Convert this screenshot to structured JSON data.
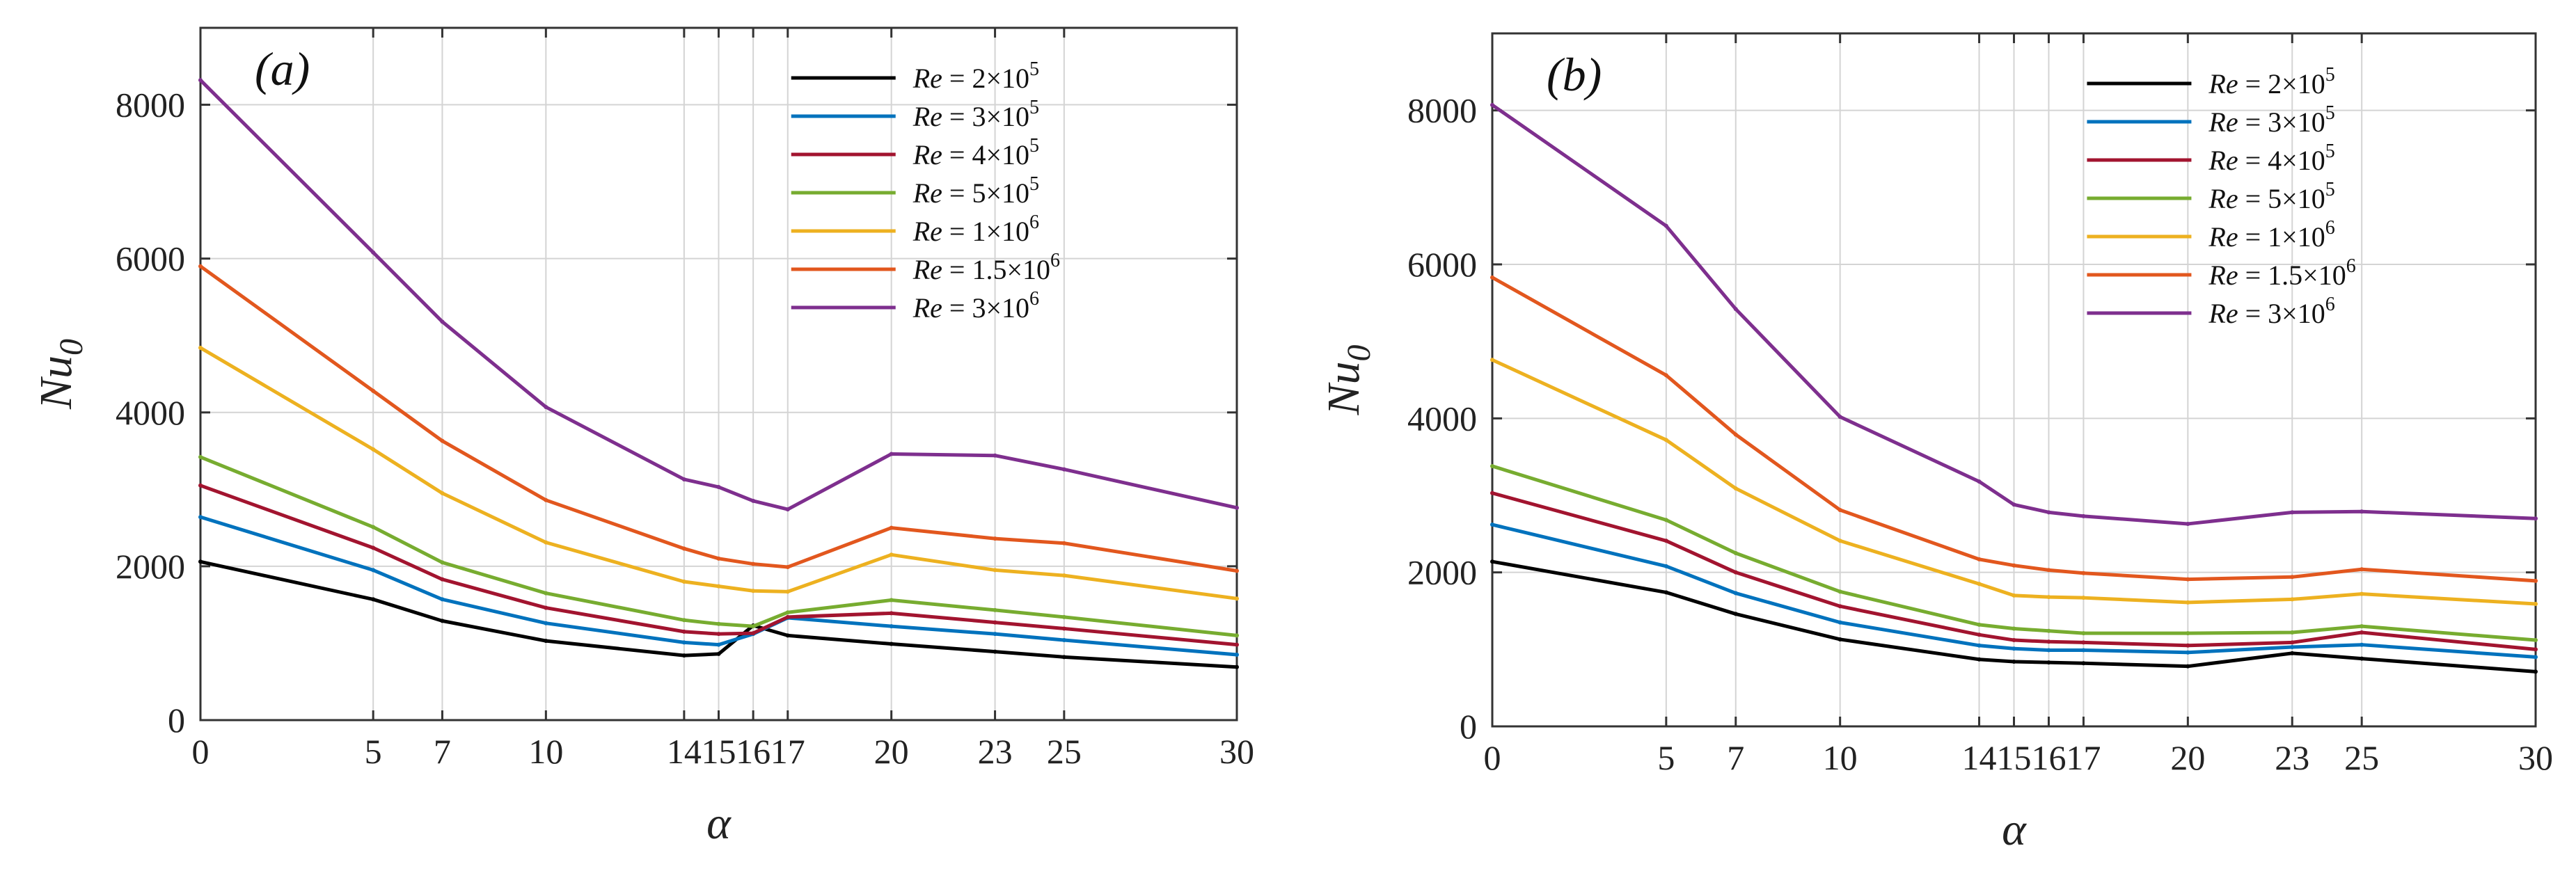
{
  "chart_data": [
    {
      "type": "line",
      "panel_label": "(a)",
      "xlabel": "α",
      "ylabel": "Nu",
      "ylabel_sub": "0",
      "xlim": [
        0,
        30
      ],
      "ylim": [
        0,
        9000
      ],
      "xticks": [
        0,
        5,
        7,
        10,
        14,
        15,
        16,
        17,
        20,
        23,
        25,
        30
      ],
      "yticks": [
        0,
        2000,
        4000,
        6000,
        8000
      ],
      "grid": true,
      "legend_position": "top-right",
      "x": [
        0,
        5,
        7,
        10,
        14,
        15,
        16,
        17,
        20,
        23,
        25,
        30
      ],
      "series": [
        {
          "name": "Re = 2×10^5",
          "legend_prefix": "Re",
          "legend_value": " = 2×10",
          "legend_exp": "5",
          "color": "#000000",
          "values": [
            2060,
            1570,
            1290,
            1030,
            840,
            860,
            1230,
            1100,
            990,
            890,
            820,
            690
          ]
        },
        {
          "name": "Re = 3×10^5",
          "legend_prefix": "Re",
          "legend_value": " = 3×10",
          "legend_exp": "5",
          "color": "#0072BD",
          "values": [
            2640,
            1950,
            1570,
            1260,
            1010,
            980,
            1120,
            1330,
            1220,
            1120,
            1040,
            850
          ]
        },
        {
          "name": "Re = 4×10^5",
          "legend_prefix": "Re",
          "legend_value": " = 4×10",
          "legend_exp": "5",
          "color": "#A2142F",
          "values": [
            3050,
            2240,
            1830,
            1460,
            1150,
            1120,
            1130,
            1340,
            1390,
            1270,
            1190,
            980
          ]
        },
        {
          "name": "Re = 5×10^5",
          "legend_prefix": "Re",
          "legend_value": " = 5×10",
          "legend_exp": "5",
          "color": "#77AC30",
          "values": [
            3420,
            2510,
            2050,
            1650,
            1300,
            1250,
            1220,
            1400,
            1560,
            1430,
            1340,
            1100
          ]
        },
        {
          "name": "Re = 1×10^6",
          "legend_prefix": "Re",
          "legend_value": " = 1×10",
          "legend_exp": "6",
          "color": "#EDB120",
          "values": [
            4840,
            3520,
            2950,
            2310,
            1800,
            1740,
            1680,
            1670,
            2150,
            1950,
            1880,
            1580
          ]
        },
        {
          "name": "Re = 1.5×10^6",
          "legend_prefix": "Re",
          "legend_value": " = 1.5×10",
          "legend_exp": "6",
          "color": "#E2571E",
          "values": [
            5900,
            4280,
            3630,
            2860,
            2230,
            2100,
            2030,
            1990,
            2500,
            2360,
            2300,
            1940
          ]
        },
        {
          "name": "Re = 3×10^6",
          "legend_prefix": "Re",
          "legend_value": " = 3×10",
          "legend_exp": "6",
          "color": "#7E2F8E",
          "values": [
            8320,
            6080,
            5180,
            4070,
            3130,
            3030,
            2850,
            2740,
            3460,
            3440,
            3260,
            2760
          ]
        }
      ]
    },
    {
      "type": "line",
      "panel_label": "(b)",
      "xlabel": "α",
      "ylabel": "Nu",
      "ylabel_sub": "0",
      "xlim": [
        0,
        30
      ],
      "ylim": [
        0,
        9000
      ],
      "xticks": [
        0,
        5,
        7,
        10,
        14,
        15,
        16,
        17,
        20,
        23,
        25,
        30
      ],
      "yticks": [
        0,
        2000,
        4000,
        6000,
        8000
      ],
      "grid": true,
      "legend_position": "top-right",
      "x": [
        0,
        5,
        7,
        10,
        14,
        15,
        16,
        17,
        20,
        23,
        25,
        30
      ],
      "series": [
        {
          "name": "Re = 2×10^5",
          "legend_prefix": "Re",
          "legend_value": " = 2×10",
          "legend_exp": "5",
          "color": "#000000",
          "values": [
            2140,
            1740,
            1460,
            1130,
            870,
            840,
            830,
            820,
            780,
            950,
            880,
            710
          ]
        },
        {
          "name": "Re = 3×10^5",
          "legend_prefix": "Re",
          "legend_value": " = 3×10",
          "legend_exp": "5",
          "color": "#0072BD",
          "values": [
            2620,
            2080,
            1730,
            1350,
            1050,
            1010,
            990,
            990,
            960,
            1030,
            1060,
            900
          ]
        },
        {
          "name": "Re = 4×10^5",
          "legend_prefix": "Re",
          "legend_value": " = 4×10",
          "legend_exp": "5",
          "color": "#A2142F",
          "values": [
            3030,
            2410,
            2000,
            1560,
            1190,
            1120,
            1100,
            1090,
            1050,
            1090,
            1220,
            1000
          ]
        },
        {
          "name": "Re = 5×10^5",
          "legend_prefix": "Re",
          "legend_value": " = 5×10",
          "legend_exp": "5",
          "color": "#77AC30",
          "values": [
            3380,
            2680,
            2250,
            1750,
            1320,
            1270,
            1240,
            1210,
            1210,
            1220,
            1300,
            1120
          ]
        },
        {
          "name": "Re = 1×10^6",
          "legend_prefix": "Re",
          "legend_value": " = 1×10",
          "legend_exp": "6",
          "color": "#EDB120",
          "values": [
            4760,
            3720,
            3090,
            2410,
            1850,
            1700,
            1680,
            1670,
            1610,
            1650,
            1720,
            1590
          ]
        },
        {
          "name": "Re = 1.5×10^6",
          "legend_prefix": "Re",
          "legend_value": " = 1.5×10",
          "legend_exp": "6",
          "color": "#E2571E",
          "values": [
            5830,
            4560,
            3790,
            2810,
            2170,
            2090,
            2030,
            1990,
            1910,
            1940,
            2040,
            1890
          ]
        },
        {
          "name": "Re = 3×10^6",
          "legend_prefix": "Re",
          "legend_value": " = 3×10",
          "legend_exp": "6",
          "color": "#7E2F8E",
          "values": [
            8070,
            6500,
            5420,
            4020,
            3180,
            2880,
            2780,
            2730,
            2630,
            2780,
            2790,
            2700
          ]
        }
      ]
    }
  ]
}
